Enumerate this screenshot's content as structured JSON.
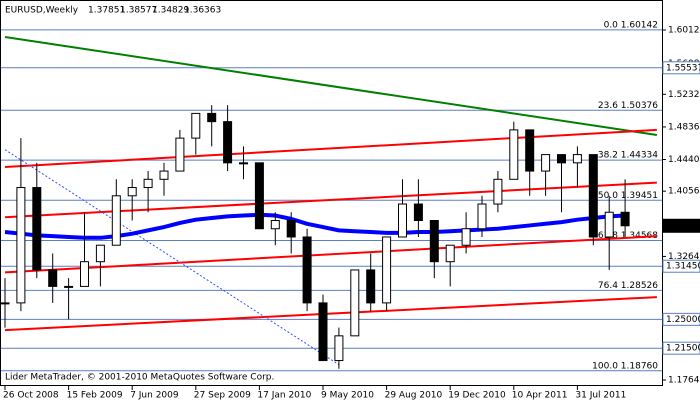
{
  "chart_data": {
    "type": "candlestick",
    "title": "EURUSD,Weekly",
    "last_bar": [
      1.37851,
      1.38577,
      1.34829,
      1.36363
    ],
    "footer": "Lider MetaTrader, © 2001-2010 MetaQuotes Software Corp.",
    "categories": [
      "26 Oct 2008",
      null,
      null,
      null,
      "15 Feb 2009",
      null,
      null,
      null,
      "7 Jun 2009",
      null,
      null,
      null,
      "27 Sep 2009",
      null,
      null,
      null,
      "17 Jan 2010",
      null,
      null,
      null,
      "9 May 2010",
      null,
      null,
      null,
      "29 Aug 2010",
      null,
      null,
      null,
      "19 Dec 2010",
      null,
      null,
      null,
      "10 Apr 2011",
      null,
      null,
      null,
      "31 Jul 2011",
      null,
      null,
      null
    ],
    "open": [
      1.27,
      1.27,
      1.41,
      1.31,
      1.29,
      1.29,
      1.32,
      1.34,
      1.4,
      1.41,
      1.42,
      1.43,
      1.47,
      1.5,
      1.49,
      1.44,
      1.44,
      1.36,
      1.37,
      1.35,
      1.27,
      1.2,
      1.23,
      1.31,
      1.27,
      1.35,
      1.39,
      1.37,
      1.32,
      1.34,
      1.36,
      1.39,
      1.42,
      1.48,
      1.43,
      1.45,
      1.44,
      1.45,
      1.35,
      1.38
    ],
    "high": [
      1.3,
      1.47,
      1.44,
      1.33,
      1.3,
      1.38,
      1.34,
      1.42,
      1.42,
      1.43,
      1.44,
      1.48,
      1.5,
      1.51,
      1.51,
      1.46,
      1.44,
      1.38,
      1.38,
      1.36,
      1.28,
      1.24,
      1.31,
      1.33,
      1.35,
      1.42,
      1.42,
      1.37,
      1.34,
      1.38,
      1.4,
      1.43,
      1.49,
      1.48,
      1.45,
      1.45,
      1.46,
      1.45,
      1.4,
      1.42
    ],
    "low": [
      1.24,
      1.26,
      1.3,
      1.27,
      1.25,
      1.29,
      1.29,
      1.34,
      1.37,
      1.38,
      1.4,
      1.43,
      1.45,
      1.46,
      1.43,
      1.42,
      1.36,
      1.34,
      1.33,
      1.26,
      1.2,
      1.19,
      1.23,
      1.26,
      1.26,
      1.35,
      1.35,
      1.3,
      1.29,
      1.33,
      1.35,
      1.38,
      1.42,
      1.4,
      1.4,
      1.38,
      1.41,
      1.34,
      1.31,
      1.35
    ],
    "close": [
      1.27,
      1.41,
      1.31,
      1.29,
      1.29,
      1.32,
      1.34,
      1.4,
      1.41,
      1.42,
      1.43,
      1.47,
      1.5,
      1.49,
      1.44,
      1.44,
      1.36,
      1.37,
      1.35,
      1.27,
      1.2,
      1.23,
      1.31,
      1.27,
      1.35,
      1.39,
      1.37,
      1.32,
      1.34,
      1.36,
      1.39,
      1.42,
      1.48,
      1.43,
      1.45,
      1.44,
      1.45,
      1.35,
      1.38,
      1.3636
    ],
    "ma": {
      "color": "#0000ff",
      "values": [
        1.356,
        1.354,
        1.352,
        1.351,
        1.35,
        1.349,
        1.349,
        1.351,
        1.354,
        1.358,
        1.362,
        1.367,
        1.371,
        1.373,
        1.375,
        1.376,
        1.377,
        1.376,
        1.372,
        1.366,
        1.362,
        1.358,
        1.357,
        1.356,
        1.355,
        1.355,
        1.356,
        1.356,
        1.357,
        1.358,
        1.359,
        1.36,
        1.362,
        1.364,
        1.366,
        1.368,
        1.371,
        1.373,
        1.375,
        1.376
      ]
    },
    "trendlines": [
      {
        "color": "#008000",
        "style": "solid",
        "x": [
          0,
          41
        ],
        "values": [
          1.5927,
          1.4738
        ]
      },
      {
        "color": "#ff0000",
        "style": "solid",
        "x": [
          0,
          41
        ],
        "values": [
          1.435,
          1.48
        ]
      },
      {
        "color": "#ff0000",
        "style": "solid",
        "x": [
          0,
          41
        ],
        "values": [
          1.374,
          1.416
        ]
      },
      {
        "color": "#ff0000",
        "style": "solid",
        "x": [
          0,
          41
        ],
        "values": [
          1.307,
          1.351
        ]
      },
      {
        "color": "#ff0000",
        "style": "solid",
        "x": [
          0,
          41
        ],
        "values": [
          1.237,
          1.277
        ]
      },
      {
        "color": "#3050ff",
        "style": "dotted",
        "x": [
          0,
          21
        ],
        "values": [
          1.456,
          1.195
        ]
      }
    ],
    "fibo": [
      {
        "value": 1.60142,
        "label": "0.0 1.60142"
      },
      {
        "value": 1.50376,
        "label": "23.6 1.50376"
      },
      {
        "value": 1.44334,
        "label": "38.2 1.44334"
      },
      {
        "value": 1.39451,
        "label": "50.0 1.39451"
      },
      {
        "value": 1.34568,
        "label": "61.8 1.34568"
      },
      {
        "value": 1.28526,
        "label": "76.4 1.28526"
      },
      {
        "value": 1.1876,
        "label": "100.0 1.18760"
      }
    ],
    "levels": [
      {
        "value": 1.55537,
        "label": "1.55537"
      },
      {
        "value": 1.3145,
        "label": "1.31450"
      },
      {
        "value": 1.25,
        "label": "1.25000"
      },
      {
        "value": 1.215,
        "label": "1.21500"
      }
    ],
    "current_price": 1.3636,
    "ylim": [
      1.1764,
      1.6158
    ],
    "yticks": [
      {
        "value": 1.6012,
        "label": "1.60120"
      },
      {
        "value": 1.5608,
        "label": "1.56080"
      },
      {
        "value": 1.5232,
        "label": "1.52320"
      },
      {
        "value": 1.4836,
        "label": "1.48360"
      },
      {
        "value": 1.444,
        "label": "1.44400"
      },
      {
        "value": 1.4056,
        "label": "1.40560"
      },
      {
        "value": 1.3264,
        "label": "1.32640"
      },
      {
        "value": 1.1764,
        "label": "1.17640"
      }
    ]
  }
}
